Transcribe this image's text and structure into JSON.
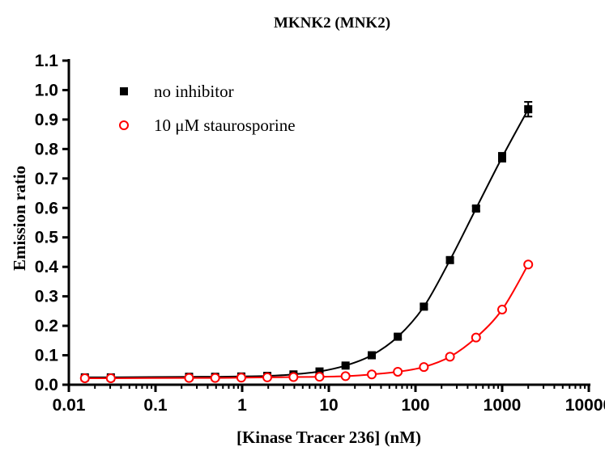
{
  "chart_data": {
    "type": "scatter",
    "title": "MKNK2 (MNK2)",
    "xlabel": "[Kinase Tracer 236] (nM)",
    "ylabel": "Emission ratio",
    "xscale": "log",
    "xlim": [
      0.01,
      10000
    ],
    "ylim": [
      0.0,
      1.1
    ],
    "x_ticks": [
      "0.01",
      "0.1",
      "1",
      "10",
      "100",
      "1000",
      "10000"
    ],
    "y_ticks": [
      "0.0",
      "0.1",
      "0.2",
      "0.3",
      "0.4",
      "0.5",
      "0.6",
      "0.7",
      "0.8",
      "0.9",
      "1.0",
      "1.1"
    ],
    "grid": false,
    "legend_position": "top-left",
    "series": [
      {
        "name": "no inhibitor",
        "marker": "filled-square",
        "color": "#000000",
        "x": [
          0.0153,
          0.0305,
          0.244,
          0.488,
          0.977,
          1.95,
          3.91,
          7.81,
          15.6,
          31.3,
          62.5,
          125,
          250,
          500,
          1000,
          2000
        ],
        "y": [
          0.025,
          0.025,
          0.027,
          0.027,
          0.028,
          0.03,
          0.035,
          0.045,
          0.065,
          0.1,
          0.163,
          0.265,
          0.423,
          0.598,
          0.772,
          0.935
        ],
        "error": [
          0.005,
          0.005,
          0.004,
          0.004,
          0.004,
          0.004,
          0.004,
          0.004,
          0.005,
          0.005,
          0.007,
          0.008,
          0.008,
          0.008,
          0.015,
          0.025
        ]
      },
      {
        "name": "10 μM staurosporine",
        "marker": "open-circle",
        "color": "#ff0000",
        "x": [
          0.0153,
          0.0305,
          0.244,
          0.488,
          0.977,
          1.95,
          3.91,
          7.81,
          15.6,
          31.3,
          62.5,
          125,
          250,
          500,
          1000,
          2000
        ],
        "y": [
          0.022,
          0.022,
          0.023,
          0.023,
          0.024,
          0.025,
          0.026,
          0.027,
          0.029,
          0.035,
          0.044,
          0.06,
          0.095,
          0.16,
          0.255,
          0.408
        ],
        "error": [
          0.004,
          0.003,
          0.003,
          0.003,
          0.003,
          0.003,
          0.003,
          0.003,
          0.003,
          0.003,
          0.004,
          0.004,
          0.004,
          0.005,
          0.005,
          0.006
        ]
      }
    ]
  }
}
